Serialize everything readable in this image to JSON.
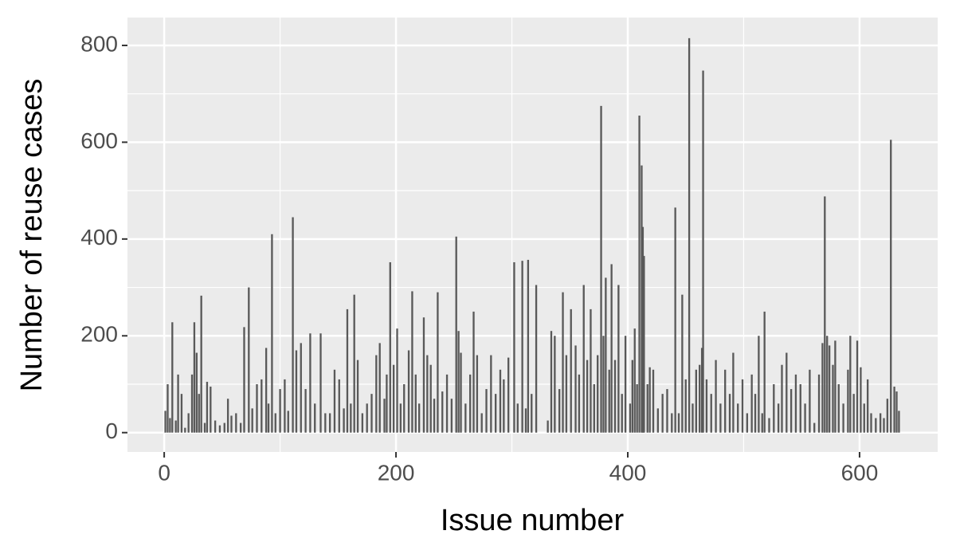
{
  "chart_data": {
    "type": "bar",
    "x_label": "Issue number",
    "y_label": "Number of reuse cases",
    "color": "#595959",
    "xlim": [
      -31.7,
      667.4
    ],
    "ylim": [
      -40,
      857.6
    ],
    "xticks": [
      0,
      200,
      400,
      600
    ],
    "yticks": [
      0,
      200,
      400,
      600,
      800
    ],
    "grid": true,
    "x": [
      1,
      3,
      5,
      7,
      10,
      12,
      15,
      18,
      21,
      24,
      26,
      28,
      30,
      32,
      35,
      37,
      40,
      44,
      48,
      52,
      55,
      58,
      62,
      66,
      69,
      73,
      76,
      80,
      84,
      88,
      90,
      93,
      96,
      100,
      104,
      107,
      111,
      114,
      118,
      122,
      126,
      130,
      135,
      139,
      143,
      147,
      151,
      155,
      158,
      161,
      164,
      167,
      171,
      175,
      179,
      183,
      186,
      190,
      192,
      195,
      198,
      201,
      204,
      207,
      211,
      214,
      217,
      220,
      224,
      227,
      230,
      233,
      236,
      240,
      244,
      248,
      252,
      254,
      256,
      260,
      264,
      267,
      270,
      274,
      278,
      282,
      286,
      290,
      293,
      297,
      302,
      305,
      309,
      312,
      314,
      317,
      321,
      331,
      334,
      337,
      341,
      344,
      347,
      351,
      355,
      358,
      362,
      365,
      368,
      371,
      374,
      377,
      379,
      381,
      384,
      386,
      389,
      392,
      395,
      398,
      402,
      404,
      406,
      408,
      410,
      412,
      413,
      414,
      417,
      419,
      422,
      426,
      430,
      434,
      438,
      441,
      444,
      447,
      450,
      453,
      456,
      459,
      462,
      464,
      465,
      468,
      472,
      476,
      480,
      484,
      488,
      491,
      495,
      499,
      503,
      507,
      510,
      513,
      516,
      518,
      522,
      526,
      530,
      533,
      537,
      541,
      545,
      549,
      553,
      557,
      561,
      565,
      568,
      570,
      572,
      574,
      577,
      579,
      582,
      586,
      590,
      592,
      595,
      598,
      601,
      604,
      607,
      610,
      614,
      618,
      621,
      624,
      627,
      630,
      632,
      634
    ],
    "values": [
      45,
      100,
      30,
      228,
      25,
      120,
      80,
      10,
      40,
      120,
      228,
      165,
      80,
      283,
      20,
      105,
      95,
      25,
      15,
      20,
      70,
      35,
      40,
      20,
      218,
      300,
      50,
      100,
      110,
      175,
      60,
      410,
      40,
      90,
      110,
      45,
      445,
      170,
      185,
      90,
      205,
      60,
      205,
      40,
      40,
      130,
      110,
      50,
      255,
      60,
      285,
      150,
      40,
      60,
      80,
      160,
      185,
      70,
      120,
      352,
      140,
      215,
      60,
      100,
      170,
      292,
      120,
      60,
      238,
      160,
      140,
      70,
      290,
      85,
      120,
      70,
      405,
      210,
      165,
      60,
      120,
      250,
      160,
      40,
      90,
      160,
      80,
      130,
      110,
      155,
      352,
      60,
      355,
      50,
      357,
      80,
      305,
      25,
      210,
      200,
      90,
      290,
      160,
      255,
      180,
      120,
      305,
      150,
      255,
      100,
      160,
      675,
      200,
      320,
      130,
      348,
      150,
      305,
      80,
      200,
      60,
      150,
      215,
      100,
      655,
      552,
      425,
      365,
      100,
      135,
      130,
      50,
      80,
      90,
      40,
      465,
      40,
      285,
      110,
      815,
      60,
      130,
      140,
      175,
      748,
      110,
      80,
      150,
      60,
      130,
      80,
      165,
      60,
      110,
      40,
      120,
      80,
      200,
      40,
      250,
      30,
      100,
      60,
      140,
      165,
      90,
      120,
      100,
      60,
      130,
      20,
      120,
      185,
      488,
      200,
      180,
      140,
      190,
      100,
      60,
      130,
      200,
      80,
      190,
      135,
      60,
      110,
      40,
      30,
      40,
      30,
      70,
      605,
      95,
      85,
      45
    ]
  }
}
